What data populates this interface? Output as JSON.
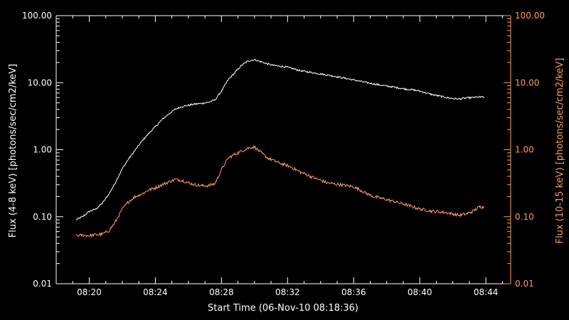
{
  "chart_data": {
    "type": "line",
    "title": "",
    "xlabel": "Start Time (06-Nov-10 08:18:36)",
    "ylabel_left": "Flux (4-8 keV) [photons/sec/cm2/keV]",
    "ylabel_right": "Flux (10-15 keV) [photons/sec/cm2/keV]",
    "x_unit": "minutes past 08:00",
    "xlim": [
      18.0,
      45.5
    ],
    "x_ticks": [
      {
        "value": 20,
        "label": "08:20"
      },
      {
        "value": 24,
        "label": "08:24"
      },
      {
        "value": 28,
        "label": "08:28"
      },
      {
        "value": 32,
        "label": "08:32"
      },
      {
        "value": 36,
        "label": "08:36"
      },
      {
        "value": 40,
        "label": "08:40"
      },
      {
        "value": 44,
        "label": "08:44"
      }
    ],
    "y_scale": "log",
    "ylim": [
      0.01,
      100
    ],
    "y_ticks_left": [
      {
        "value": 0.01,
        "label": "0.01"
      },
      {
        "value": 0.1,
        "label": "0.10"
      },
      {
        "value": 1,
        "label": "1.00"
      },
      {
        "value": 10,
        "label": "10.00"
      },
      {
        "value": 100,
        "label": "100.00"
      }
    ],
    "y_ticks_right": [
      {
        "value": 0.01,
        "label": "0.01"
      },
      {
        "value": 0.1,
        "label": "0.10"
      },
      {
        "value": 1,
        "label": "1.00"
      },
      {
        "value": 10,
        "label": "10.00"
      },
      {
        "value": 100,
        "label": "100.00"
      }
    ],
    "grid": false,
    "legend": "none",
    "colors": {
      "background": "#000000",
      "axes": "#ffffff",
      "series_4_8": "#ffffff",
      "series_10_15": "#ff9a5c"
    },
    "series": [
      {
        "axis": "left",
        "color": "#ffffff",
        "x": [
          19.2,
          19.6,
          20.0,
          20.4,
          20.8,
          21.2,
          21.6,
          22.0,
          22.4,
          22.8,
          23.2,
          23.6,
          24.0,
          24.4,
          24.8,
          25.2,
          25.6,
          26.0,
          26.4,
          26.8,
          27.2,
          27.6,
          28.0,
          28.4,
          28.8,
          29.2,
          29.6,
          30.0,
          30.4,
          30.8,
          31.2,
          31.6,
          32.0,
          32.4,
          32.8,
          33.2,
          33.6,
          34.0,
          34.4,
          34.8,
          35.2,
          35.6,
          36.0,
          36.4,
          36.8,
          37.2,
          37.6,
          38.0,
          38.4,
          38.8,
          39.2,
          39.6,
          40.0,
          40.4,
          40.8,
          41.2,
          41.6,
          42.0,
          42.4,
          42.8,
          43.2,
          43.6,
          43.9
        ],
        "y": [
          0.09,
          0.1,
          0.12,
          0.13,
          0.16,
          0.22,
          0.33,
          0.52,
          0.74,
          1.0,
          1.35,
          1.75,
          2.2,
          2.8,
          3.4,
          4.0,
          4.4,
          4.6,
          4.8,
          4.9,
          5.1,
          5.5,
          7.5,
          11.0,
          14.0,
          18.0,
          21.0,
          22.0,
          20.5,
          19.0,
          18.0,
          17.5,
          17.0,
          16.0,
          15.0,
          14.5,
          14.0,
          13.5,
          13.0,
          12.5,
          12.0,
          11.5,
          11.0,
          10.5,
          10.0,
          9.6,
          9.2,
          8.9,
          8.6,
          8.3,
          8.0,
          7.8,
          7.5,
          7.0,
          6.6,
          6.3,
          6.0,
          5.8,
          5.7,
          5.9,
          6.0,
          6.1,
          6.1
        ]
      },
      {
        "axis": "right",
        "color": "#ff9a5c",
        "x": [
          19.2,
          19.6,
          20.0,
          20.4,
          20.8,
          21.2,
          21.6,
          22.0,
          22.4,
          22.8,
          23.2,
          23.6,
          24.0,
          24.4,
          24.8,
          25.2,
          25.6,
          26.0,
          26.4,
          26.8,
          27.2,
          27.6,
          28.0,
          28.4,
          28.8,
          29.2,
          29.6,
          30.0,
          30.4,
          30.8,
          31.2,
          31.6,
          32.0,
          32.4,
          32.8,
          33.2,
          33.6,
          34.0,
          34.4,
          34.8,
          35.2,
          35.6,
          36.0,
          36.4,
          36.8,
          37.2,
          37.6,
          38.0,
          38.4,
          38.8,
          39.2,
          39.6,
          40.0,
          40.4,
          40.8,
          41.2,
          41.6,
          42.0,
          42.4,
          42.8,
          43.2,
          43.6,
          43.9
        ],
        "y": [
          0.052,
          0.053,
          0.052,
          0.054,
          0.055,
          0.062,
          0.085,
          0.13,
          0.17,
          0.2,
          0.22,
          0.25,
          0.27,
          0.3,
          0.33,
          0.36,
          0.35,
          0.32,
          0.3,
          0.29,
          0.29,
          0.31,
          0.5,
          0.75,
          0.85,
          0.95,
          1.05,
          1.1,
          0.9,
          0.75,
          0.68,
          0.62,
          0.58,
          0.52,
          0.46,
          0.42,
          0.38,
          0.35,
          0.32,
          0.31,
          0.3,
          0.29,
          0.28,
          0.25,
          0.22,
          0.2,
          0.19,
          0.18,
          0.17,
          0.16,
          0.15,
          0.14,
          0.13,
          0.125,
          0.12,
          0.118,
          0.115,
          0.11,
          0.105,
          0.11,
          0.12,
          0.14,
          0.14
        ]
      }
    ]
  }
}
